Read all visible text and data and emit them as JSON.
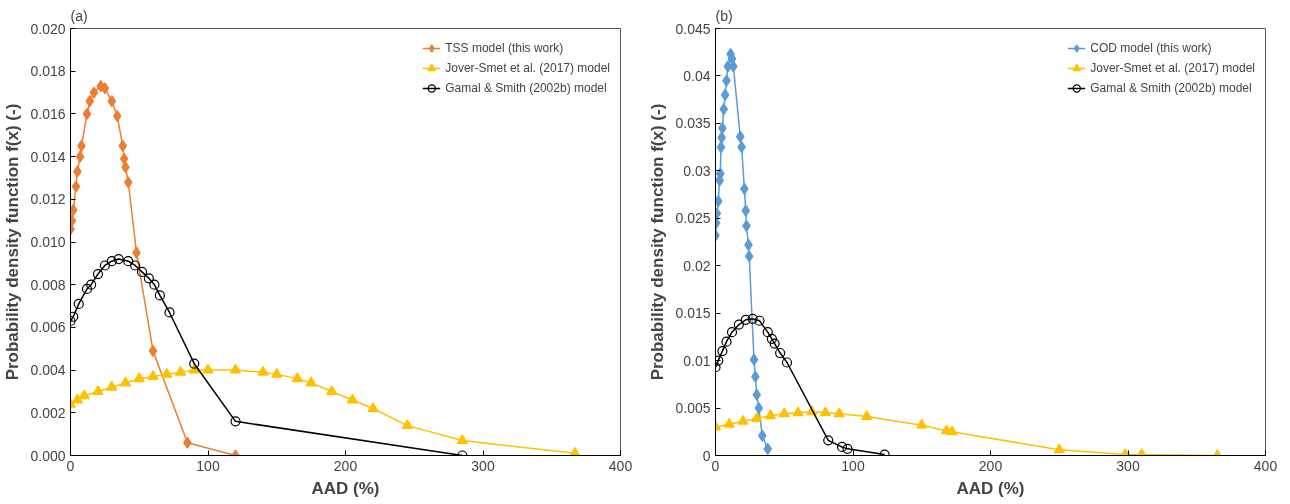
{
  "chart_data": [
    {
      "type": "line",
      "title": "(a)",
      "xlabel": "AAD (%)",
      "ylabel": "Probability density function f(x) (-)",
      "xlim": [
        0,
        400
      ],
      "xticks": [
        0,
        100,
        200,
        300,
        400
      ],
      "ylim": [
        0,
        0.02
      ],
      "yticks": [
        {
          "value": 0,
          "label": "0.000"
        },
        {
          "value": 0.002,
          "label": "0.002"
        },
        {
          "value": 0.004,
          "label": "0.004"
        },
        {
          "value": 0.006,
          "label": "0.006"
        },
        {
          "value": 0.008,
          "label": "0.008"
        },
        {
          "value": 0.01,
          "label": "0.010"
        },
        {
          "value": 0.012,
          "label": "0.012"
        },
        {
          "value": 0.014,
          "label": "0.014"
        },
        {
          "value": 0.016,
          "label": "0.016"
        },
        {
          "value": 0.018,
          "label": "0.018"
        },
        {
          "value": 0.02,
          "label": "0.020"
        }
      ],
      "grid": false,
      "legend": "top right",
      "series": [
        {
          "name": "TSS model (this work)",
          "color": "#ed7d31",
          "marker": "diamond",
          "x": [
            0,
            1,
            2,
            4,
            5,
            7,
            8,
            12,
            14,
            17,
            22,
            25,
            30,
            34,
            38,
            39,
            40,
            42,
            48,
            60,
            85,
            120
          ],
          "values": [
            0.0106,
            0.011,
            0.0115,
            0.0126,
            0.0133,
            0.014,
            0.0145,
            0.016,
            0.0166,
            0.017,
            0.0173,
            0.0172,
            0.0166,
            0.0159,
            0.0145,
            0.0139,
            0.0135,
            0.0128,
            0.0095,
            0.0049,
            0.0006,
            0.0
          ]
        },
        {
          "name": "Jover-Smet et al. (2017) model",
          "color": "#ffc000",
          "marker": "triangle",
          "x": [
            0,
            5,
            10,
            20,
            30,
            40,
            50,
            60,
            70,
            80,
            90,
            100,
            120,
            140,
            150,
            165,
            175,
            190,
            205,
            220,
            245,
            285,
            367
          ],
          "values": [
            0.0024,
            0.0026,
            0.0028,
            0.003,
            0.0032,
            0.0034,
            0.0036,
            0.0037,
            0.0038,
            0.0039,
            0.004,
            0.004,
            0.004,
            0.0039,
            0.0038,
            0.0036,
            0.0034,
            0.003,
            0.0026,
            0.0022,
            0.0014,
            0.0007,
            0.0001
          ]
        },
        {
          "name": "Gamal & Smith (2002b) model",
          "color": "#000000",
          "marker": "circle",
          "x": [
            0,
            2,
            6,
            12,
            15,
            20,
            25,
            30,
            35,
            42,
            47,
            52,
            57,
            61,
            65,
            72,
            90,
            120,
            285
          ],
          "values": [
            0.0063,
            0.0065,
            0.0071,
            0.0078,
            0.008,
            0.0085,
            0.0089,
            0.0091,
            0.0092,
            0.0091,
            0.0089,
            0.0086,
            0.0083,
            0.008,
            0.0075,
            0.0067,
            0.0043,
            0.0016,
            0.0
          ]
        }
      ]
    },
    {
      "type": "line",
      "title": "(b)",
      "xlabel": "AAD (%)",
      "ylabel": "Probability density function f(x) (-)",
      "xlim": [
        0,
        400
      ],
      "xticks": [
        0,
        100,
        200,
        300,
        400
      ],
      "ylim": [
        0,
        0.045
      ],
      "yticks": [
        0,
        0.005,
        0.01,
        0.015,
        0.02,
        0.025,
        0.03,
        0.035,
        0.04,
        0.045
      ],
      "grid": false,
      "legend": "top right",
      "series": [
        {
          "name": "COD model (this work)",
          "color": "#5b9bd5",
          "marker": "diamond",
          "x": [
            0,
            0.5,
            1,
            2,
            3,
            3.5,
            4,
            4.5,
            5,
            6,
            7,
            8,
            9,
            11,
            12,
            13,
            18,
            19,
            21,
            22,
            22.5,
            24,
            24.5,
            28,
            29,
            30,
            31.5,
            34,
            38
          ],
          "values": [
            0.0232,
            0.0245,
            0.0255,
            0.0268,
            0.029,
            0.0297,
            0.0325,
            0.0335,
            0.0345,
            0.0365,
            0.038,
            0.0395,
            0.041,
            0.0423,
            0.0418,
            0.041,
            0.0336,
            0.0325,
            0.0281,
            0.0258,
            0.0242,
            0.0222,
            0.021,
            0.0101,
            0.0083,
            0.0064,
            0.005,
            0.0021,
            0.0007
          ]
        },
        {
          "name": "Jover-Smet et al. (2017) model",
          "color": "#ffc000",
          "marker": "triangle",
          "x": [
            0,
            10,
            20,
            30,
            40,
            50,
            60,
            70,
            80,
            90,
            110,
            150,
            168,
            172,
            250,
            298,
            310,
            365
          ],
          "values": [
            0.003,
            0.0033,
            0.0036,
            0.0039,
            0.0042,
            0.0044,
            0.0045,
            0.0046,
            0.0045,
            0.0044,
            0.0041,
            0.0032,
            0.0026,
            0.0025,
            0.0006,
            0.0001,
            0.0001,
            0.0
          ]
        },
        {
          "name": "Gamal & Smith (2002b) model",
          "color": "#000000",
          "marker": "circle",
          "x": [
            0,
            2,
            5,
            8,
            12,
            17,
            22,
            27,
            32,
            38,
            41,
            43,
            47,
            52,
            82,
            92,
            96,
            123
          ],
          "values": [
            0.0093,
            0.01,
            0.011,
            0.012,
            0.013,
            0.0138,
            0.0143,
            0.0144,
            0.0142,
            0.013,
            0.0123,
            0.0118,
            0.0108,
            0.0098,
            0.0016,
            0.0009,
            0.0007,
            0.0001
          ]
        }
      ]
    }
  ]
}
